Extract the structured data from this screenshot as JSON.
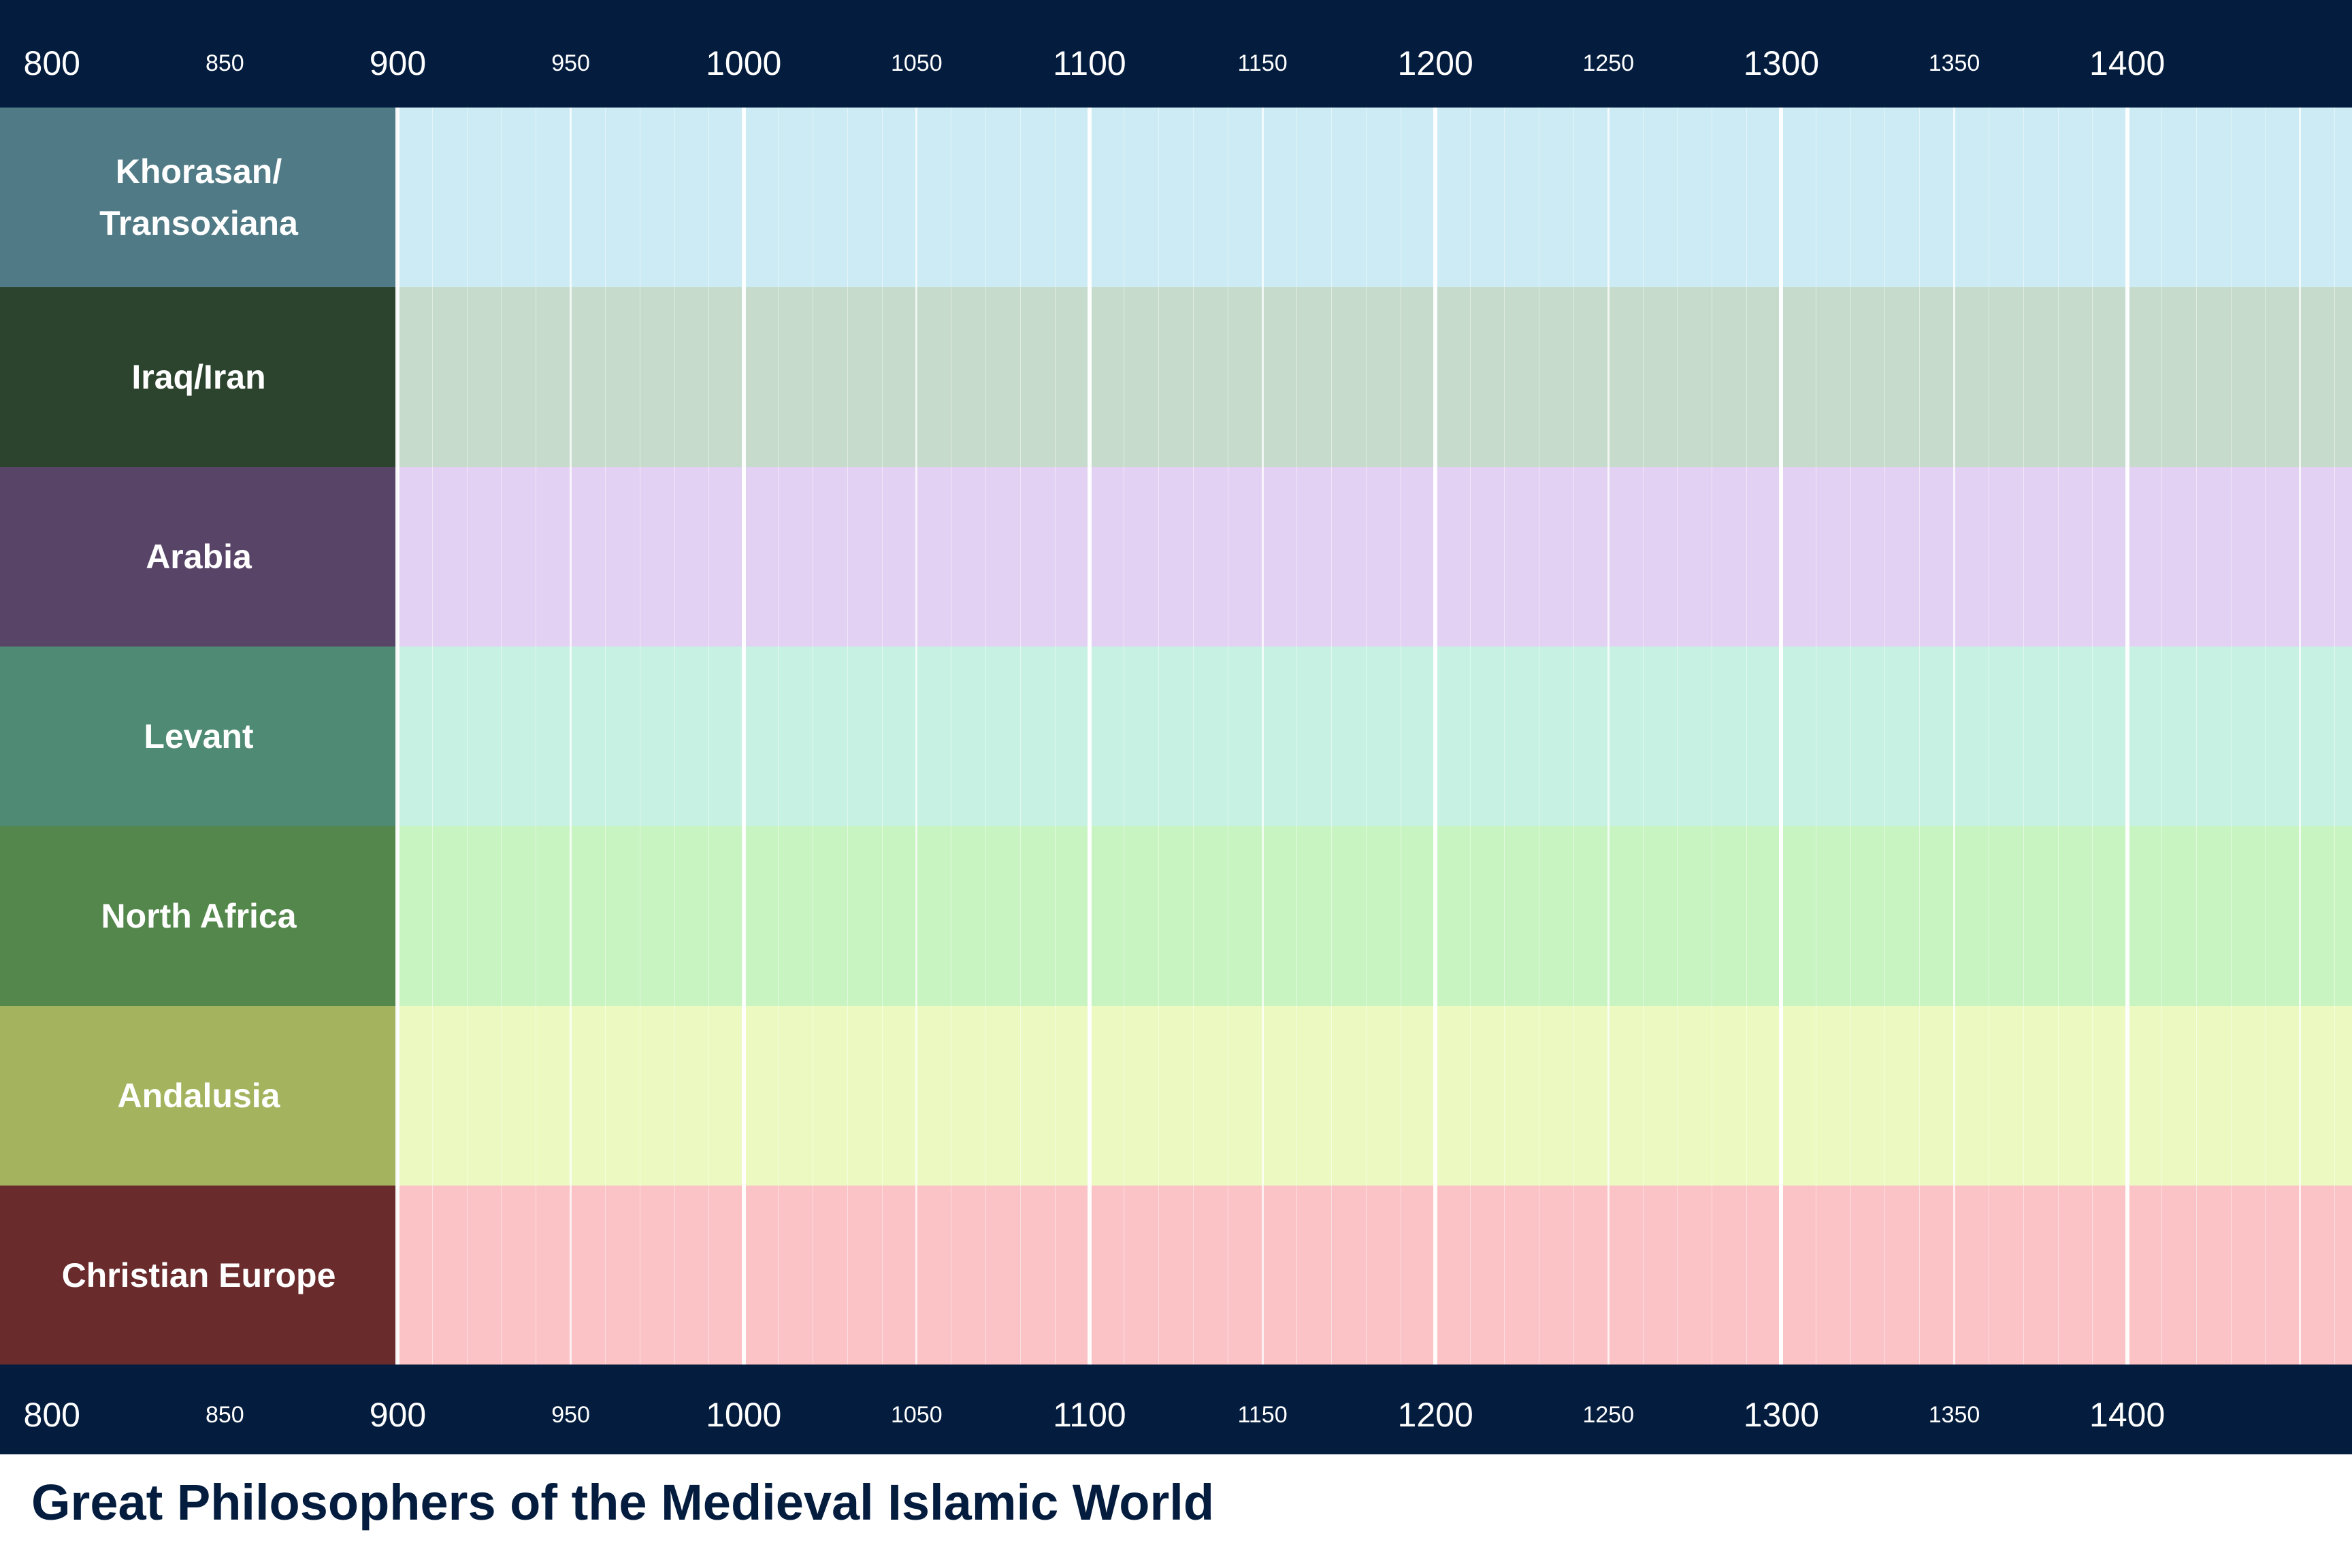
{
  "title": "Great Philosophers of the Medieval Islamic World",
  "axis": {
    "start_year": 785,
    "end_year": 1465,
    "major_ticks": [
      "800",
      "900",
      "1000",
      "1100",
      "1200",
      "1300",
      "1400"
    ],
    "minor_ticks": [
      "850",
      "950",
      "1050",
      "1150",
      "1250",
      "1350"
    ],
    "fine_gridline_step_years": 10
  },
  "regions": [
    {
      "label_lines": [
        "Khorasan/",
        "Transoxiana"
      ],
      "label_color": "#507a86",
      "band_color": "#cdebf4"
    },
    {
      "label_lines": [
        "Iraq/Iran"
      ],
      "label_color": "#2c432e",
      "band_color": "#c6dbcb"
    },
    {
      "label_lines": [
        "Arabia"
      ],
      "label_color": "#584467",
      "band_color": "#e3d1f3"
    },
    {
      "label_lines": [
        "Levant"
      ],
      "label_color": "#4e8a74",
      "band_color": "#c7f2e3"
    },
    {
      "label_lines": [
        "North Africa"
      ],
      "label_color": "#53874b",
      "band_color": "#c8f4c2"
    },
    {
      "label_lines": [
        "Andalusia"
      ],
      "label_color": "#a3b35e",
      "band_color": "#ecfac2"
    },
    {
      "label_lines": [
        "Christian Europe"
      ],
      "label_color": "#6a2b2d",
      "band_color": "#fcc3c6"
    }
  ],
  "colors": {
    "axis_background": "#041d3f",
    "title_color": "#041d3f",
    "gridline_color": "#ffffff"
  }
}
